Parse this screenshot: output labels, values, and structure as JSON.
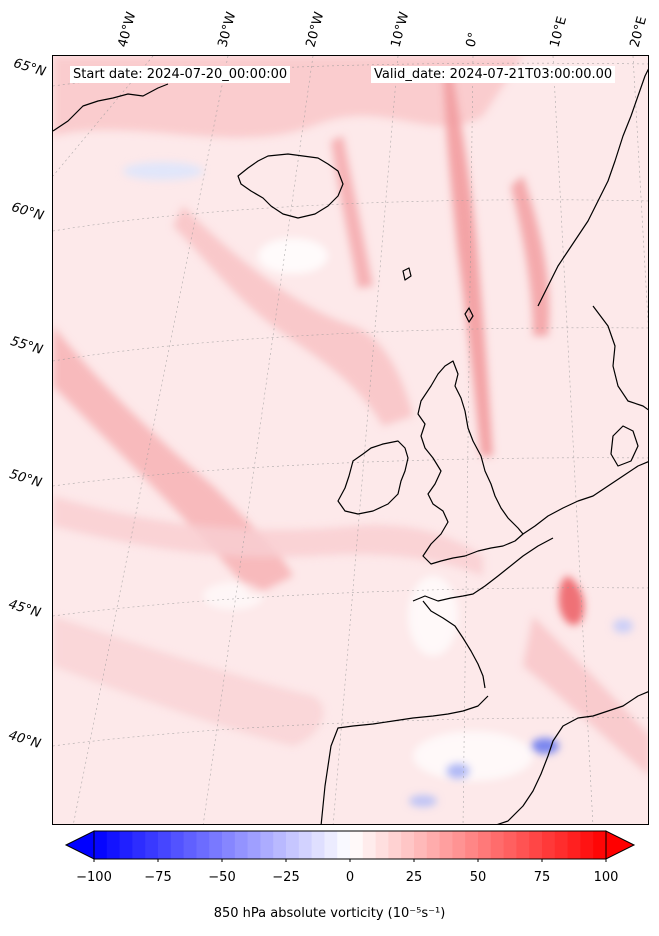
{
  "map": {
    "start_label": "Start date: 2024-07-20_00:00:00",
    "valid_label": "Valid_date: 2024-07-21T03:00:00.00",
    "projection": "lambert-conformal",
    "background_color": "#fde9ea",
    "coastline_color": "#000000",
    "gridline_color": "#999999",
    "lat_labels": [
      "65°N",
      "60°N",
      "55°N",
      "50°N",
      "45°N",
      "40°N"
    ],
    "lon_labels": [
      "40°W",
      "30°W",
      "20°W",
      "10°W",
      "0°",
      "10°E",
      "20°E"
    ]
  },
  "colorbar": {
    "label": "850 hPa absolute vorticity (10⁻⁵s⁻¹)",
    "min": -100,
    "max": 100,
    "ticks": [
      "−100",
      "−75",
      "−50",
      "−25",
      "0",
      "25",
      "50",
      "75",
      "100"
    ],
    "colormap": "bwr",
    "negative_color": "#0000ff",
    "zero_color": "#ffffff",
    "positive_color": "#ff0000",
    "extend": "both"
  }
}
